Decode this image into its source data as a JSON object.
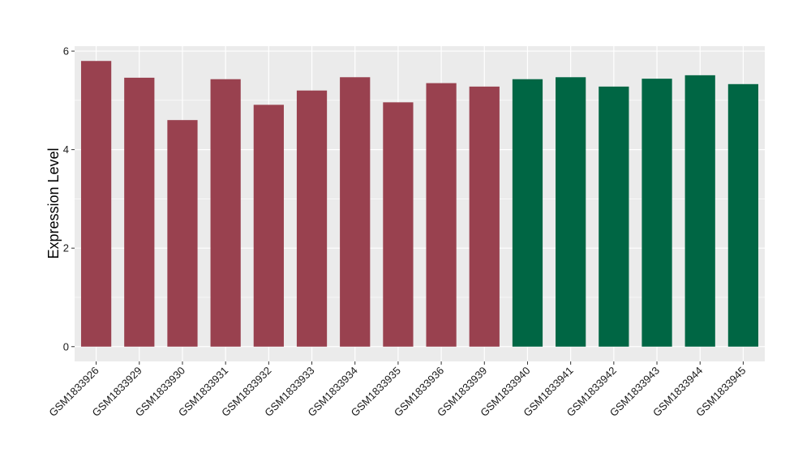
{
  "chart_data": {
    "type": "bar",
    "title": "",
    "xlabel": "",
    "ylabel": "Expression Level",
    "ylim": [
      -0.3,
      6.1
    ],
    "yticks": [
      0,
      2,
      4,
      6
    ],
    "grid": true,
    "legend": "none",
    "categories": [
      "GSM1833926",
      "GSM1833929",
      "GSM1833930",
      "GSM1833931",
      "GSM1833932",
      "GSM1833933",
      "GSM1833934",
      "GSM1833935",
      "GSM1833936",
      "GSM1833939",
      "GSM1833940",
      "GSM1833941",
      "GSM1833942",
      "GSM1833943",
      "GSM1833944",
      "GSM1833945"
    ],
    "values": [
      5.8,
      5.46,
      4.6,
      5.43,
      4.91,
      5.2,
      5.47,
      4.96,
      5.35,
      5.28,
      5.43,
      5.47,
      5.28,
      5.44,
      5.51,
      5.33
    ],
    "groups": [
      "a",
      "a",
      "a",
      "a",
      "a",
      "a",
      "a",
      "a",
      "a",
      "a",
      "b",
      "b",
      "b",
      "b",
      "b",
      "b"
    ],
    "colors": {
      "a": "#99414F",
      "b": "#006644"
    },
    "panel_background": "#EBEBEB",
    "grid_color": "#FFFFFF"
  }
}
